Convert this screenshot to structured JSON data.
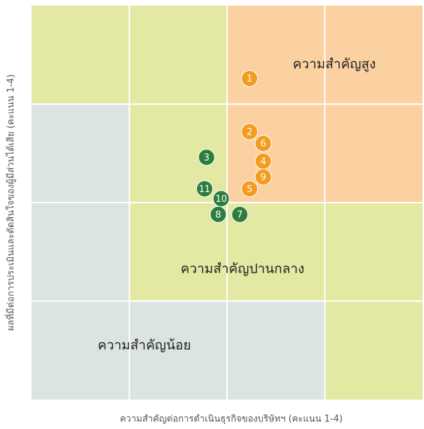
{
  "chart_data": {
    "type": "scatter",
    "xlabel": "ความสำคัญต่อการดำเนินธุรกิจของบริษัทฯ (คะแนน 1-4)",
    "ylabel": "ผลที่มีต่อการประเมินและตัดสินใจของผู้มีส่วนได้เสีย (คะแนน 1-4)",
    "annotations": [
      "ความสำคัญสูง",
      "ความสำคัญปานกลาง",
      "ความสำคัญน้อย"
    ],
    "labels": [
      "1",
      "2",
      "6",
      "4",
      "9",
      "5",
      "3",
      "11",
      "10",
      "8",
      "7"
    ],
    "x": [
      2.23,
      2.23,
      2.37,
      2.37,
      2.37,
      2.23,
      1.79,
      1.77,
      1.94,
      1.91,
      2.13
    ],
    "values": [
      3.26,
      2.72,
      2.6,
      2.42,
      2.26,
      2.14,
      2.46,
      2.14,
      2.04,
      1.88,
      1.88
    ],
    "colors": [
      "#f39c1f",
      "#f39c1f",
      "#f39c1f",
      "#f39c1f",
      "#f39c1f",
      "#f39c1f",
      "#2e7d3e",
      "#2e7d3e",
      "#2e7d3e",
      "#2e7d3e",
      "#2e7d3e"
    ],
    "xlim": [
      0,
      4
    ],
    "ylim": [
      0,
      4
    ],
    "xticks": [
      1,
      2,
      3
    ],
    "yticks": [
      1,
      2,
      3
    ],
    "grid": true
  }
}
